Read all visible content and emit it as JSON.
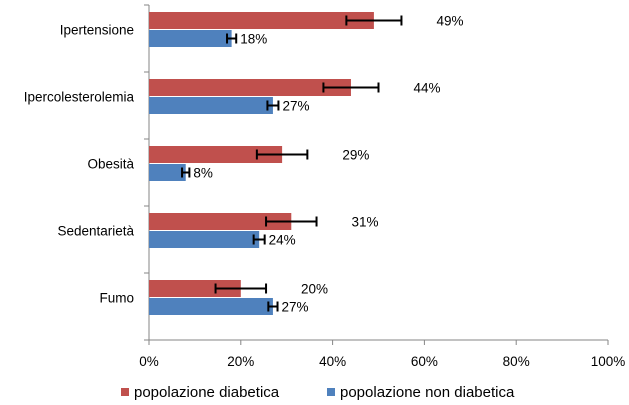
{
  "chart_data": {
    "type": "bar",
    "orientation": "horizontal",
    "title": "",
    "xlabel": "",
    "ylabel": "",
    "categories": [
      "Ipertensione",
      "Ipercolesterolemia",
      "Obesità",
      "Sedentarietà",
      "Fumo"
    ],
    "series": [
      {
        "name": "popolazione diabetica",
        "color": "#c0504d",
        "values": [
          49,
          44,
          29,
          31,
          20
        ],
        "error": [
          6,
          6,
          5.5,
          5.5,
          5.5
        ],
        "labels": [
          "49%",
          "44%",
          "29%",
          "31%",
          "20%"
        ]
      },
      {
        "name": "popolazione non diabetica",
        "color": "#4f81bd",
        "values": [
          18,
          27,
          8,
          24,
          27
        ],
        "error": [
          1,
          1.2,
          0.8,
          1.2,
          1
        ],
        "labels": [
          "18%",
          "27%",
          "8%",
          "24%",
          "27%"
        ]
      }
    ],
    "xlim": [
      0,
      100
    ],
    "xticks": [
      0,
      20,
      40,
      60,
      80,
      100
    ],
    "xtick_labels": [
      "0%",
      "20%",
      "40%",
      "60%",
      "80%",
      "100%"
    ],
    "grid": false,
    "legend": {
      "position": "bottom",
      "items": [
        "popolazione diabetica",
        "popolazione non diabetica"
      ]
    },
    "errorbar_color": "#000000",
    "axis_color": "#868686"
  }
}
